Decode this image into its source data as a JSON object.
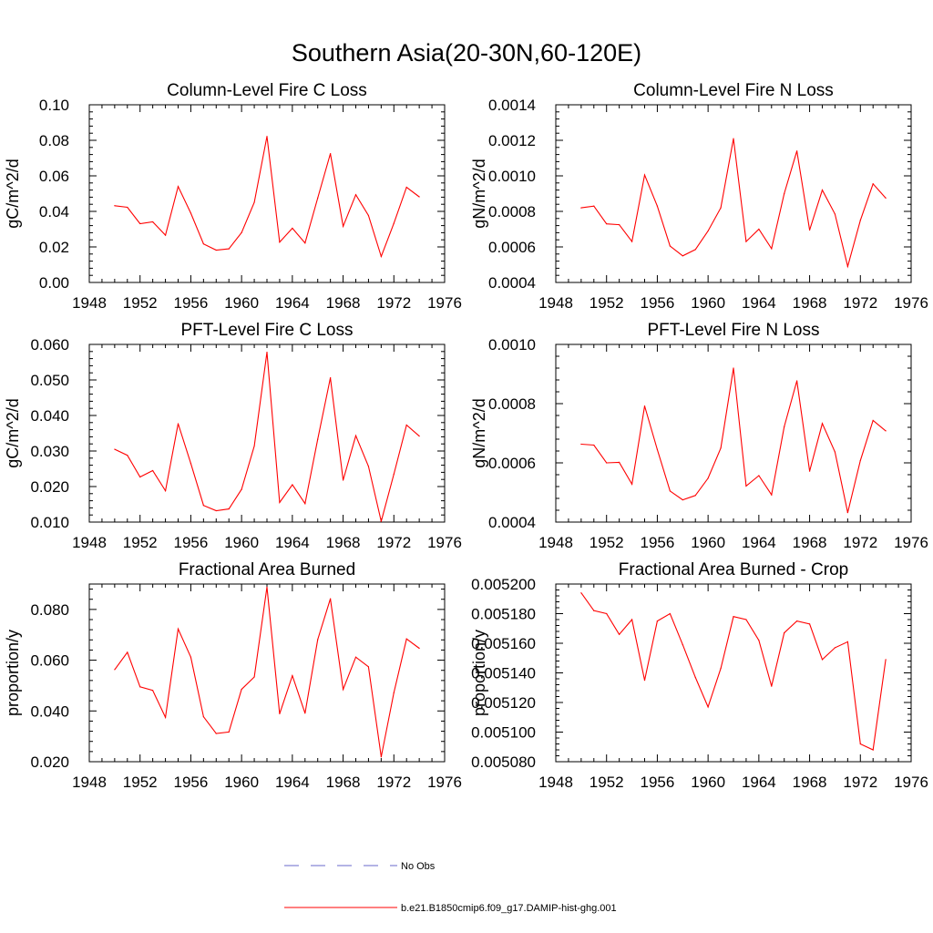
{
  "figure": {
    "title": "Southern Asia(20-30N,60-120E)"
  },
  "legend": [
    {
      "label": "No Obs",
      "color": "#6a6acb",
      "dashed": true
    },
    {
      "label": "b.e21.B1850cmip6.f09_g17.DAMIP-hist-ghg.001",
      "color": "#ff0000",
      "dashed": false
    }
  ],
  "colors": {
    "series": "#ff0000",
    "axes": "#000000"
  },
  "chart_data": [
    {
      "type": "line",
      "title": "Column-Level Fire C Loss",
      "ylabel": "gC/m^2/d",
      "xlim": [
        1948,
        1976
      ],
      "ylim": [
        0,
        0.1
      ],
      "xticks": [
        "1948",
        "1952",
        "1956",
        "1960",
        "1964",
        "1968",
        "1972",
        "1976"
      ],
      "yticks": [
        "0.00",
        "0.02",
        "0.04",
        "0.06",
        "0.08",
        "0.10"
      ],
      "x": [
        1950,
        1951,
        1952,
        1953,
        1954,
        1955,
        1956,
        1957,
        1958,
        1959,
        1960,
        1961,
        1962,
        1963,
        1964,
        1965,
        1966,
        1967,
        1968,
        1969,
        1970,
        1971,
        1972,
        1973,
        1974
      ],
      "series": [
        {
          "name": "b.e21.B1850cmip6.f09_g17.DAMIP-hist-ghg.001",
          "values": [
            0.0432,
            0.0423,
            0.0331,
            0.0341,
            0.0266,
            0.054,
            0.039,
            0.0217,
            0.0182,
            0.0189,
            0.028,
            0.0451,
            0.0822,
            0.0227,
            0.0305,
            0.0222,
            0.0475,
            0.0725,
            0.0316,
            0.0494,
            0.0377,
            0.0146,
            0.0333,
            0.0536,
            0.0482
          ]
        }
      ]
    },
    {
      "type": "line",
      "title": "Column-Level Fire N Loss",
      "ylabel": "gN/m^2/d",
      "xlim": [
        1948,
        1976
      ],
      "ylim": [
        0.0004,
        0.0014
      ],
      "xticks": [
        "1948",
        "1952",
        "1956",
        "1960",
        "1964",
        "1968",
        "1972",
        "1976"
      ],
      "yticks": [
        "0.0004",
        "0.0006",
        "0.0008",
        "0.0010",
        "0.0012",
        "0.0014"
      ],
      "x": [
        1950,
        1951,
        1952,
        1953,
        1954,
        1955,
        1956,
        1957,
        1958,
        1959,
        1960,
        1961,
        1962,
        1963,
        1964,
        1965,
        1966,
        1967,
        1968,
        1969,
        1970,
        1971,
        1972,
        1973,
        1974
      ],
      "series": [
        {
          "name": "b.e21.B1850cmip6.f09_g17.DAMIP-hist-ghg.001",
          "values": [
            0.00082,
            0.00083,
            0.00073,
            0.000725,
            0.00063,
            0.001005,
            0.00083,
            0.000605,
            0.00055,
            0.000585,
            0.00069,
            0.00082,
            0.00121,
            0.00063,
            0.0007,
            0.00059,
            0.0009,
            0.00114,
            0.000695,
            0.00092,
            0.000785,
            0.00049,
            0.00075,
            0.000955,
            0.000875
          ]
        }
      ]
    },
    {
      "type": "line",
      "title": "PFT-Level Fire C Loss",
      "ylabel": "gC/m^2/d",
      "xlim": [
        1948,
        1976
      ],
      "ylim": [
        0.01,
        0.06
      ],
      "xticks": [
        "1948",
        "1952",
        "1956",
        "1960",
        "1964",
        "1968",
        "1972",
        "1976"
      ],
      "yticks": [
        "0.010",
        "0.020",
        "0.030",
        "0.040",
        "0.050",
        "0.060"
      ],
      "x": [
        1950,
        1951,
        1952,
        1953,
        1954,
        1955,
        1956,
        1957,
        1958,
        1959,
        1960,
        1961,
        1962,
        1963,
        1964,
        1965,
        1966,
        1967,
        1968,
        1969,
        1970,
        1971,
        1972,
        1973,
        1974
      ],
      "series": [
        {
          "name": "b.e21.B1850cmip6.f09_g17.DAMIP-hist-ghg.001",
          "values": [
            0.0305,
            0.0288,
            0.0227,
            0.0245,
            0.0188,
            0.0377,
            0.0265,
            0.0147,
            0.0132,
            0.0137,
            0.0192,
            0.0314,
            0.0578,
            0.0155,
            0.0205,
            0.0152,
            0.0333,
            0.0506,
            0.0218,
            0.0343,
            0.0257,
            0.0102,
            0.0235,
            0.0373,
            0.0342
          ]
        }
      ]
    },
    {
      "type": "line",
      "title": "PFT-Level Fire N Loss",
      "ylabel": "gN/m^2/d",
      "xlim": [
        1948,
        1976
      ],
      "ylim": [
        0.0004,
        0.001
      ],
      "xticks": [
        "1948",
        "1952",
        "1956",
        "1960",
        "1964",
        "1968",
        "1972",
        "1976"
      ],
      "yticks": [
        "0.0004",
        "0.0006",
        "0.0008",
        "0.0010"
      ],
      "x": [
        1950,
        1951,
        1952,
        1953,
        1954,
        1955,
        1956,
        1957,
        1958,
        1959,
        1960,
        1961,
        1962,
        1963,
        1964,
        1965,
        1966,
        1967,
        1968,
        1969,
        1970,
        1971,
        1972,
        1973,
        1974
      ],
      "series": [
        {
          "name": "b.e21.B1850cmip6.f09_g17.DAMIP-hist-ghg.001",
          "values": [
            0.000663,
            0.00066,
            0.0006,
            0.000602,
            0.000528,
            0.000792,
            0.000645,
            0.000505,
            0.000475,
            0.00049,
            0.000548,
            0.00065,
            0.00092,
            0.000522,
            0.000557,
            0.000492,
            0.000722,
            0.000877,
            0.000572,
            0.000733,
            0.000637,
            0.000432,
            0.000608,
            0.000743,
            0.000708
          ]
        }
      ]
    },
    {
      "type": "line",
      "title": "Fractional Area Burned",
      "ylabel": "proportion/y",
      "xlim": [
        1948,
        1976
      ],
      "ylim": [
        0.02,
        0.09
      ],
      "xticks": [
        "1948",
        "1952",
        "1956",
        "1960",
        "1964",
        "1968",
        "1972",
        "1976"
      ],
      "yticks": [
        "0.020",
        "0.040",
        "0.060",
        "0.080"
      ],
      "x": [
        1950,
        1951,
        1952,
        1953,
        1954,
        1955,
        1956,
        1957,
        1958,
        1959,
        1960,
        1961,
        1962,
        1963,
        1964,
        1965,
        1966,
        1967,
        1968,
        1969,
        1970,
        1971,
        1972,
        1973,
        1974
      ],
      "series": [
        {
          "name": "b.e21.B1850cmip6.f09_g17.DAMIP-hist-ghg.001",
          "values": [
            0.0563,
            0.0631,
            0.0495,
            0.0481,
            0.0375,
            0.0723,
            0.0612,
            0.0377,
            0.0311,
            0.0317,
            0.0485,
            0.0534,
            0.0888,
            0.0389,
            0.0539,
            0.0391,
            0.0681,
            0.0842,
            0.0485,
            0.0612,
            0.0574,
            0.0219,
            0.0472,
            0.0684,
            0.0647
          ]
        }
      ]
    },
    {
      "type": "line",
      "title": "Fractional Area Burned - Crop",
      "ylabel": "proportion/y",
      "xlim": [
        1948,
        1976
      ],
      "ylim": [
        0.00508,
        0.0052
      ],
      "xticks": [
        "1948",
        "1952",
        "1956",
        "1960",
        "1964",
        "1968",
        "1972",
        "1976"
      ],
      "yticks": [
        "0.005080",
        "0.005100",
        "0.005120",
        "0.005140",
        "0.005160",
        "0.005180",
        "0.005200"
      ],
      "x": [
        1950,
        1951,
        1952,
        1953,
        1954,
        1955,
        1956,
        1957,
        1958,
        1959,
        1960,
        1961,
        1962,
        1963,
        1964,
        1965,
        1966,
        1967,
        1968,
        1969,
        1970,
        1971,
        1972,
        1973,
        1974
      ],
      "series": [
        {
          "name": "b.e21.B1850cmip6.f09_g17.DAMIP-hist-ghg.001",
          "values": [
            0.005194,
            0.005182,
            0.00518,
            0.005166,
            0.005176,
            0.005135,
            0.005175,
            0.00518,
            0.005159,
            0.005137,
            0.005117,
            0.005143,
            0.005178,
            0.005176,
            0.005162,
            0.005131,
            0.005167,
            0.005175,
            0.005173,
            0.005149,
            0.005157,
            0.005161,
            0.005092,
            0.005088,
            0.005149
          ]
        }
      ]
    }
  ]
}
